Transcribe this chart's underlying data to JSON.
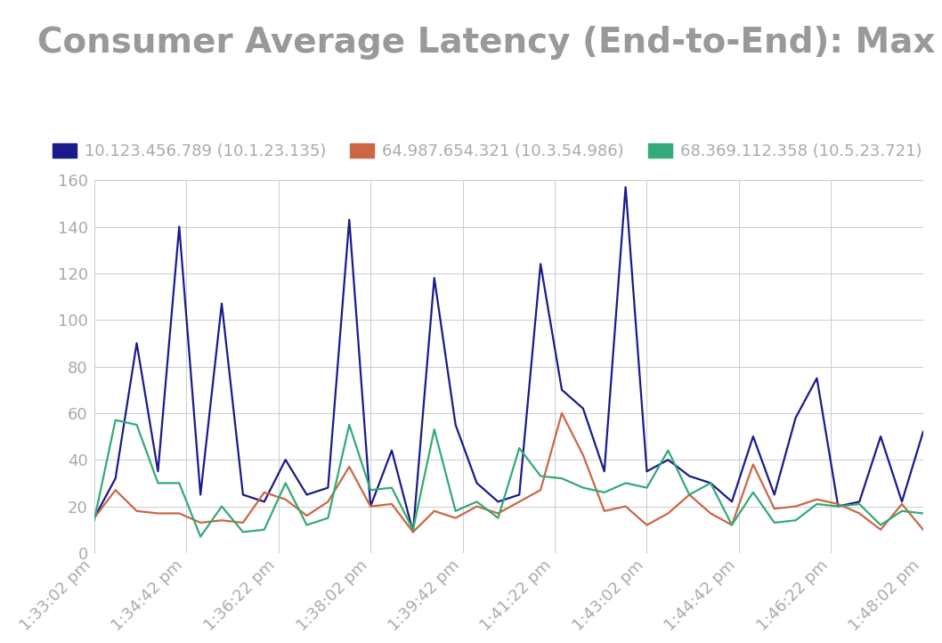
{
  "title": "Consumer Average Latency (End-to-End): Max",
  "title_color": "#999999",
  "title_fontsize": 28,
  "background_color": "#ffffff",
  "grid_color": "#cccccc",
  "x_tick_labels": [
    "1:33:02 pm",
    "1:34:42 pm",
    "1:36:22 pm",
    "1:38:02 pm",
    "1:39:42 pm",
    "1:41:22 pm",
    "1:43:02 pm",
    "1:44:42 pm",
    "1:46:22 pm",
    "1:48:02 pm"
  ],
  "ylim": [
    0,
    160
  ],
  "yticks": [
    0,
    20,
    40,
    60,
    80,
    100,
    120,
    140,
    160
  ],
  "series": [
    {
      "label": "10.123.456.789 (10.1.23.135)",
      "color": "#1a1a8c",
      "linewidth": 1.6,
      "values": [
        15,
        32,
        90,
        35,
        140,
        25,
        107,
        25,
        22,
        40,
        25,
        28,
        143,
        20,
        44,
        9,
        118,
        55,
        30,
        22,
        25,
        124,
        70,
        62,
        35,
        157,
        35,
        40,
        33,
        30,
        22,
        50,
        25,
        58,
        75,
        20,
        22,
        50,
        22,
        52
      ]
    },
    {
      "label": "64.987.654.321 (10.3.54.986)",
      "color": "#cc6644",
      "linewidth": 1.6,
      "values": [
        15,
        27,
        18,
        17,
        17,
        13,
        14,
        13,
        26,
        23,
        16,
        22,
        37,
        20,
        21,
        9,
        18,
        15,
        20,
        17,
        22,
        27,
        60,
        42,
        18,
        20,
        12,
        17,
        25,
        17,
        12,
        38,
        19,
        20,
        23,
        21,
        17,
        10,
        21,
        10
      ]
    },
    {
      "label": "68.369.112.358 (10.5.23.721)",
      "color": "#33aa77",
      "linewidth": 1.6,
      "values": [
        14,
        57,
        55,
        30,
        30,
        7,
        20,
        9,
        10,
        30,
        12,
        15,
        55,
        27,
        28,
        10,
        53,
        18,
        22,
        15,
        45,
        33,
        32,
        28,
        26,
        30,
        28,
        44,
        25,
        30,
        12,
        26,
        13,
        14,
        21,
        20,
        21,
        12,
        18,
        17
      ]
    }
  ],
  "tick_color": "#aaaaaa",
  "tick_fontsize": 13,
  "legend_fontsize": 13
}
